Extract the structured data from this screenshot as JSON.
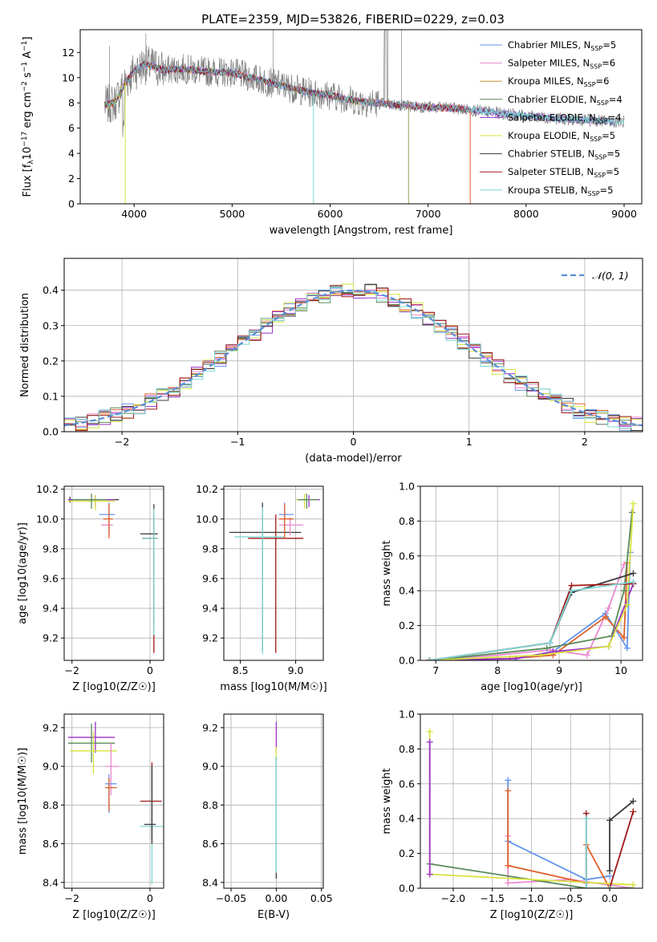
{
  "figure": {
    "title": "PLATE=2359, MJD=53826, FIBERID=0229, z=0.03"
  },
  "chart_data": [
    {
      "id": "spectrum",
      "type": "line",
      "xlabel": "wavelength [Angstrom, rest frame]",
      "ylabel": "Flux [f_λ 10^-17 erg cm^-2 s^-1 A^-1]",
      "xlim": [
        3450,
        9180
      ],
      "ylim": [
        0,
        13.8
      ],
      "xticks": [
        4000,
        5000,
        6000,
        7000,
        8000,
        9000
      ],
      "yticks": [
        0,
        2,
        4,
        6,
        8,
        10,
        12
      ],
      "grid": false,
      "legend": "top-right",
      "observed_color": "#808080",
      "series": [
        {
          "name": "Chabrier MILES, N_SSP=5",
          "color": "#6495ed"
        },
        {
          "name": "Salpeter MILES, N_SSP=6",
          "color": "#e98ad0"
        },
        {
          "name": "Kroupa MILES, N_SSP=6",
          "color": "#c8943a"
        },
        {
          "name": "Chabrier ELODIE, N_SSP=4",
          "color": "#5a8a5a"
        },
        {
          "name": "Salpeter ELODIE, N_SSP=4",
          "color": "#9b30c8"
        },
        {
          "name": "Kroupa ELODIE, N_SSP=5",
          "color": "#d8e33e"
        },
        {
          "name": "Chabrier STELIB, N_SSP=5",
          "color": "#3a3a3a"
        },
        {
          "name": "Salpeter STELIB, N_SSP=5",
          "color": "#a01818"
        },
        {
          "name": "Kroupa STELIB, N_SSP=5",
          "color": "#7fd8d8"
        }
      ],
      "model_curve": {
        "x": [
          3700,
          3800,
          3900,
          4000,
          4100,
          4200,
          4300,
          4500,
          4700,
          5000,
          5300,
          5500,
          5800,
          6000,
          6300,
          6600,
          6900,
          7200,
          7500,
          7800,
          8100,
          8400,
          8700,
          9000
        ],
        "y": [
          7.8,
          8.0,
          9.5,
          10.5,
          11.0,
          10.9,
          10.6,
          10.7,
          10.5,
          10.4,
          9.8,
          9.4,
          8.8,
          8.6,
          8.1,
          7.9,
          7.7,
          7.6,
          7.4,
          7.1,
          6.9,
          6.7,
          6.6,
          6.5
        ]
      },
      "dips": [
        {
          "x": 3910,
          "to": 0.0,
          "color": "#d8e33e"
        },
        {
          "x": 5830,
          "to": 0.0,
          "color": "#7fd8d8"
        },
        {
          "x": 6800,
          "to": 0.0,
          "color": "#9b9b55"
        },
        {
          "x": 7430,
          "to": 0.0,
          "color": "#e0602a"
        }
      ]
    },
    {
      "id": "residuals",
      "type": "histogram",
      "xlabel": "(data-model)/error",
      "ylabel": "Normed distribution",
      "xlim": [
        -2.5,
        2.5
      ],
      "ylim": [
        0,
        0.49
      ],
      "xticks": [
        -2,
        -1,
        0,
        1,
        2
      ],
      "yticks": [
        0.0,
        0.1,
        0.2,
        0.3,
        0.4
      ],
      "grid": true,
      "legend": "top-right",
      "normal_label": "𝒩(0, 1)",
      "normal_color": "#5b8ed8",
      "bin_width": 0.1
    },
    {
      "id": "age_vs_Z",
      "type": "scatter",
      "xlabel": "Z [log10(Z/Z☉)]",
      "ylabel": "age [log10(age/yr)]",
      "xlim": [
        -2.2,
        0.35
      ],
      "ylim": [
        9.05,
        10.22
      ],
      "xticks": [
        -2,
        0
      ],
      "yticks": [
        9.2,
        9.4,
        9.6,
        9.8,
        10.0,
        10.2
      ],
      "grid": true,
      "points": [
        {
          "x": -2.05,
          "xerr": [
            0,
            1.25
          ],
          "y": 10.13,
          "yerr": [
            0.02,
            0.02
          ],
          "color": "#3a3a3a"
        },
        {
          "x": -1.05,
          "xerr": [
            0.25,
            0.15
          ],
          "y": 10.03,
          "yerr": [
            0.13,
            0.08
          ],
          "color": "#6495ed"
        },
        {
          "x": -1.05,
          "xerr": [
            0.2,
            0.1
          ],
          "y": 9.96,
          "yerr": [
            0.07,
            0.05
          ],
          "color": "#e98ad0"
        },
        {
          "x": -1.05,
          "xerr": [
            0.15,
            0.1
          ],
          "y": 10.0,
          "yerr": [
            0.13,
            0.1
          ],
          "color": "#e0602a"
        },
        {
          "x": -1.4,
          "xerr": [
            0.7,
            0.5
          ],
          "y": 10.13,
          "yerr": [
            0.05,
            0.03
          ],
          "color": "#9b30c8"
        },
        {
          "x": -1.4,
          "xerr": [
            0.7,
            0.5
          ],
          "y": 10.12,
          "yerr": [
            0.06,
            0.04
          ],
          "color": "#d8e33e"
        },
        {
          "x": -1.5,
          "xerr": [
            0.5,
            0.4
          ],
          "y": 10.13,
          "yerr": [
            0.06,
            0.04
          ],
          "color": "#5a8a5a"
        },
        {
          "x": 0.1,
          "xerr": [
            0.35,
            0.1
          ],
          "y": 9.9,
          "yerr": [
            0.6,
            0.2
          ],
          "color": "#3a3a3a"
        },
        {
          "x": 0.1,
          "xerr": [
            0.3,
            0.1
          ],
          "y": 9.87,
          "yerr": [
            0.77,
            0.17
          ],
          "color": "#a01818"
        },
        {
          "x": 0.1,
          "xerr": [
            0.3,
            0.1
          ],
          "y": 9.87,
          "yerr": [
            0.65,
            0.2
          ],
          "color": "#7fd8d8"
        }
      ]
    },
    {
      "id": "age_vs_mass",
      "type": "scatter",
      "xlabel": "mass [log10(M/M☉)]",
      "ylabel": "",
      "xlim": [
        8.35,
        9.25
      ],
      "ylim": [
        9.05,
        10.22
      ],
      "xticks": [
        8.5,
        9.0
      ],
      "yticks": [
        9.2,
        9.4,
        9.6,
        9.8,
        10.0,
        10.2
      ],
      "grid": true,
      "points": [
        {
          "x": 8.7,
          "xerr": [
            0.3,
            0.35
          ],
          "y": 9.91,
          "yerr": [
            0.8,
            0.2
          ],
          "color": "#3a3a3a"
        },
        {
          "x": 8.82,
          "xerr": [
            0.25,
            0.25
          ],
          "y": 9.87,
          "yerr": [
            0.77,
            0.16
          ],
          "color": "#a01818"
        },
        {
          "x": 8.7,
          "xerr": [
            0.25,
            0.2
          ],
          "y": 9.88,
          "yerr": [
            0.79,
            0.2
          ],
          "color": "#7fd8d8"
        },
        {
          "x": 8.9,
          "xerr": [
            0.05,
            0.08
          ],
          "y": 10.03,
          "yerr": [
            0.1,
            0.08
          ],
          "color": "#6495ed"
        },
        {
          "x": 8.95,
          "xerr": [
            0.1,
            0.12
          ],
          "y": 9.96,
          "yerr": [
            0.07,
            0.05
          ],
          "color": "#e98ad0"
        },
        {
          "x": 8.9,
          "xerr": [
            0.05,
            0.08
          ],
          "y": 10.0,
          "yerr": [
            0.13,
            0.1
          ],
          "color": "#e0602a"
        },
        {
          "x": 9.12,
          "xerr": [
            0.08,
            0.1
          ],
          "y": 10.13,
          "yerr": [
            0.05,
            0.03
          ],
          "color": "#9b30c8"
        },
        {
          "x": 9.08,
          "xerr": [
            0.08,
            0.1
          ],
          "y": 10.13,
          "yerr": [
            0.06,
            0.04
          ],
          "color": "#d8e33e"
        },
        {
          "x": 9.1,
          "xerr": [
            0.08,
            0.1
          ],
          "y": 10.13,
          "yerr": [
            0.06,
            0.04
          ],
          "color": "#5a8a5a"
        }
      ]
    },
    {
      "id": "mass_weight_vs_age",
      "type": "line",
      "xlabel": "age [log10(age/yr)]",
      "ylabel": "mass weight",
      "xlim": [
        6.75,
        10.35
      ],
      "ylim": [
        0,
        1.0
      ],
      "xticks": [
        7,
        8,
        9,
        10
      ],
      "yticks": [
        0.0,
        0.2,
        0.4,
        0.6,
        0.8,
        1.0
      ],
      "grid": true,
      "series": [
        {
          "color": "#6495ed",
          "x": [
            6.9,
            8.3,
            8.9,
            9.75,
            10.1,
            10.15
          ],
          "y": [
            0.0,
            0.01,
            0.05,
            0.27,
            0.07,
            0.62
          ]
        },
        {
          "color": "#e98ad0",
          "x": [
            6.9,
            8.0,
            8.85,
            9.45,
            9.8,
            10.05
          ],
          "y": [
            0.0,
            0.03,
            0.06,
            0.03,
            0.3,
            0.55
          ]
        },
        {
          "color": "#e0602a",
          "x": [
            6.9,
            8.2,
            8.9,
            9.75,
            10.05,
            10.1
          ],
          "y": [
            0.0,
            0.01,
            0.03,
            0.25,
            0.13,
            0.56
          ]
        },
        {
          "color": "#5a8a5a",
          "x": [
            6.9,
            8.8,
            9.85,
            10.05,
            10.18
          ],
          "y": [
            0.0,
            0.07,
            0.14,
            0.4,
            0.85
          ]
        },
        {
          "color": "#9b30c8",
          "x": [
            6.9,
            8.3,
            8.9,
            9.8,
            10.2
          ],
          "y": [
            0.0,
            0.01,
            0.05,
            0.08,
            0.44
          ]
        },
        {
          "color": "#d8e33e",
          "x": [
            6.9,
            8.7,
            9.8,
            10.1,
            10.2
          ],
          "y": [
            0.0,
            0.03,
            0.08,
            0.32,
            0.9
          ]
        },
        {
          "color": "#3a3a3a",
          "x": [
            6.9,
            8.85,
            9.2,
            10.2
          ],
          "y": [
            0.0,
            0.1,
            0.39,
            0.5
          ]
        },
        {
          "color": "#a01818",
          "x": [
            6.9,
            8.85,
            9.2,
            10.2
          ],
          "y": [
            0.0,
            0.1,
            0.43,
            0.44
          ]
        },
        {
          "color": "#7fd8d8",
          "x": [
            6.9,
            8.85,
            9.2,
            10.2
          ],
          "y": [
            0.0,
            0.1,
            0.4,
            0.45
          ]
        }
      ]
    },
    {
      "id": "mass_vs_Z",
      "type": "scatter",
      "xlabel": "Z [log10(Z/Z☉)]",
      "ylabel": "mass [log10(M/M☉)]",
      "xlim": [
        -2.2,
        0.35
      ],
      "ylim": [
        8.37,
        9.27
      ],
      "xticks": [
        -2,
        0
      ],
      "yticks": [
        8.4,
        8.6,
        8.8,
        9.0,
        9.2
      ],
      "grid": true,
      "points": [
        {
          "x": -1.4,
          "xerr": [
            0.7,
            0.5
          ],
          "y": 9.15,
          "yerr": [
            0.08,
            0.08
          ],
          "color": "#9b30c8"
        },
        {
          "x": -1.5,
          "xerr": [
            0.6,
            0.6
          ],
          "y": 9.12,
          "yerr": [
            0.1,
            0.1
          ],
          "color": "#5a8a5a"
        },
        {
          "x": -1.45,
          "xerr": [
            0.6,
            0.6
          ],
          "y": 9.08,
          "yerr": [
            0.12,
            0.1
          ],
          "color": "#d8e33e"
        },
        {
          "x": -1.0,
          "xerr": [
            0.15,
            0.2
          ],
          "y": 9.0,
          "yerr": [
            0.15,
            0.12
          ],
          "color": "#e98ad0"
        },
        {
          "x": -1.05,
          "xerr": [
            0.1,
            0.2
          ],
          "y": 8.91,
          "yerr": [
            0.15,
            0.05
          ],
          "color": "#6495ed"
        },
        {
          "x": -1.05,
          "xerr": [
            0.1,
            0.2
          ],
          "y": 8.89,
          "yerr": [
            0.12,
            0.05
          ],
          "color": "#e0602a"
        },
        {
          "x": 0.05,
          "xerr": [
            0.3,
            0.25
          ],
          "y": 8.82,
          "yerr": [
            0.2,
            0.2
          ],
          "color": "#a01818"
        },
        {
          "x": 0.05,
          "xerr": [
            0.3,
            0.3
          ],
          "y": 8.69,
          "yerr": [
            0.3,
            0.3
          ],
          "color": "#7fd8d8"
        },
        {
          "x": 0.05,
          "xerr": [
            0.2,
            0.1
          ],
          "y": 8.7,
          "yerr": [
            0.1,
            0.3
          ],
          "color": "#3a3a3a"
        }
      ]
    },
    {
      "id": "mass_vs_EBV",
      "type": "scatter",
      "xlabel": "E(B-V)",
      "ylabel": "",
      "xlim": [
        -0.058,
        0.052
      ],
      "ylim": [
        8.37,
        9.27
      ],
      "xticks": [
        -0.05,
        0.0,
        0.05
      ],
      "yticks": [
        8.4,
        8.6,
        8.8,
        9.0,
        9.2
      ],
      "grid": true,
      "points": [
        {
          "x": 0.0,
          "xerr": [
            0,
            0
          ],
          "y": 9.15,
          "yerr": [
            0.08,
            0.08
          ],
          "color": "#9b30c8"
        },
        {
          "x": 0.0,
          "xerr": [
            0,
            0
          ],
          "y": 9.0,
          "yerr": [
            0.15,
            0.1
          ],
          "color": "#d8e33e"
        },
        {
          "x": 0.0,
          "xerr": [
            0,
            0
          ],
          "y": 8.8,
          "yerr": [
            0.38,
            0.25
          ],
          "color": "#3a3a3a"
        },
        {
          "x": 0.0,
          "xerr": [
            0,
            0
          ],
          "y": 8.75,
          "yerr": [
            0.3,
            0.3
          ],
          "color": "#7fd8d8"
        }
      ]
    },
    {
      "id": "mass_weight_vs_Z",
      "type": "line",
      "xlabel": "Z [log10(Z/Z☉)]",
      "ylabel": "mass weight",
      "xlim": [
        -2.42,
        0.42
      ],
      "ylim": [
        0,
        1.0
      ],
      "xticks": [
        -2.0,
        -1.5,
        -1.0,
        -0.5,
        0.0
      ],
      "yticks": [
        0.0,
        0.2,
        0.4,
        0.6,
        0.8,
        1.0
      ],
      "grid": true,
      "series": [
        {
          "color": "#6495ed",
          "x": [
            -1.3,
            -1.3,
            -0.3,
            0.0
          ],
          "y": [
            0.62,
            0.27,
            0.05,
            0.07
          ]
        },
        {
          "color": "#e98ad0",
          "x": [
            -1.3,
            -1.3,
            -0.5,
            0.3
          ],
          "y": [
            0.3,
            0.03,
            0.05,
            0.0
          ]
        },
        {
          "color": "#e0602a",
          "x": [
            -1.3,
            -1.3,
            -0.3,
            -0.3,
            0.0
          ],
          "y": [
            0.56,
            0.13,
            0.03,
            0.25,
            0.0
          ]
        },
        {
          "color": "#5a8a5a",
          "x": [
            -2.3,
            -0.3,
            0.3
          ],
          "y": [
            0.14,
            0.0,
            0.0
          ]
        },
        {
          "color": "#d8e33e",
          "x": [
            -2.3,
            -2.3,
            0.3
          ],
          "y": [
            0.9,
            0.08,
            0.02
          ]
        },
        {
          "color": "#3a3a3a",
          "x": [
            0.0,
            0.0,
            0.3
          ],
          "y": [
            0.1,
            0.39,
            0.5
          ]
        },
        {
          "color": "#a01818",
          "x": [
            -0.3,
            -0.3,
            0.0,
            0.3
          ],
          "y": [
            0.43,
            0.0,
            0.0,
            0.44
          ]
        },
        {
          "color": "#7fd8d8",
          "x": [
            -0.3,
            -0.3,
            0.0
          ],
          "y": [
            0.4,
            0.0,
            0.0
          ]
        },
        {
          "color": "#9b30c8",
          "x": [
            -2.3,
            -2.3
          ],
          "y": [
            0.84,
            0.08
          ]
        }
      ]
    }
  ]
}
